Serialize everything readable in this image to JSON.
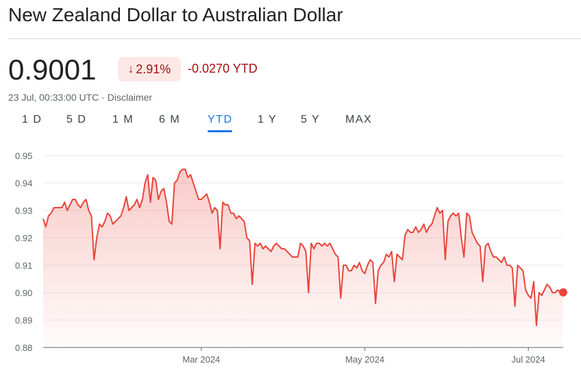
{
  "header": {
    "title": "New Zealand Dollar to Australian Dollar"
  },
  "quote": {
    "price": "0.9001",
    "change_percent": "2.91%",
    "change_direction": "down",
    "change_abs": "-0.0270 YTD",
    "timestamp": "23 Jul, 00:33:00 UTC · Disclaimer"
  },
  "tabs": [
    {
      "label": "1 D"
    },
    {
      "label": "5 D"
    },
    {
      "label": "1 M"
    },
    {
      "label": "6 M"
    },
    {
      "label": "YTD",
      "active": true
    },
    {
      "label": "1 Y"
    },
    {
      "label": "5 Y"
    },
    {
      "label": "MAX"
    }
  ],
  "colors": {
    "line": "#e8453c",
    "negative": "#a50e0e",
    "badge_bg": "#fce8e6",
    "accent": "#1a73e8"
  },
  "chart_data": {
    "type": "area",
    "ylim": [
      0.88,
      0.95
    ],
    "yticks": [
      "0.88",
      "0.89",
      "0.90",
      "0.91",
      "0.92",
      "0.93",
      "0.94",
      "0.95"
    ],
    "xticks": [
      {
        "label": "Mar 2024",
        "day": 59
      },
      {
        "label": "May 2024",
        "day": 120
      },
      {
        "label": "Jul 2024",
        "day": 181
      }
    ],
    "x_start": "2024-01-01",
    "x_end": "2024-07-23",
    "grid": true,
    "points": [
      [
        0,
        0.927
      ],
      [
        1,
        0.924
      ],
      [
        2,
        0.928
      ],
      [
        3,
        0.929
      ],
      [
        4,
        0.931
      ],
      [
        6,
        0.931
      ],
      [
        7,
        0.931
      ],
      [
        8,
        0.933
      ],
      [
        9,
        0.93
      ],
      [
        10,
        0.932
      ],
      [
        11,
        0.934
      ],
      [
        12,
        0.934
      ],
      [
        13,
        0.932
      ],
      [
        14,
        0.931
      ],
      [
        15,
        0.933
      ],
      [
        16,
        0.934
      ],
      [
        17,
        0.93
      ],
      [
        18,
        0.928
      ],
      [
        19,
        0.912
      ],
      [
        20,
        0.92
      ],
      [
        21,
        0.925
      ],
      [
        22,
        0.924
      ],
      [
        23,
        0.926
      ],
      [
        24,
        0.929
      ],
      [
        25,
        0.928
      ],
      [
        26,
        0.925
      ],
      [
        27,
        0.926
      ],
      [
        28,
        0.927
      ],
      [
        29,
        0.928
      ],
      [
        30,
        0.931
      ],
      [
        31,
        0.935
      ],
      [
        32,
        0.93
      ],
      [
        33,
        0.931
      ],
      [
        34,
        0.932
      ],
      [
        35,
        0.934
      ],
      [
        36,
        0.931
      ],
      [
        37,
        0.934
      ],
      [
        38,
        0.94
      ],
      [
        39,
        0.943
      ],
      [
        40,
        0.933
      ],
      [
        41,
        0.942
      ],
      [
        42,
        0.941
      ],
      [
        43,
        0.934
      ],
      [
        44,
        0.937
      ],
      [
        45,
        0.938
      ],
      [
        46,
        0.933
      ],
      [
        47,
        0.926
      ],
      [
        48,
        0.925
      ],
      [
        49,
        0.94
      ],
      [
        50,
        0.941
      ],
      [
        51,
        0.944
      ],
      [
        52,
        0.945
      ],
      [
        53,
        0.945
      ],
      [
        54,
        0.942
      ],
      [
        55,
        0.943
      ],
      [
        56,
        0.94
      ],
      [
        57,
        0.937
      ],
      [
        58,
        0.934
      ],
      [
        59,
        0.934
      ],
      [
        60,
        0.935
      ],
      [
        61,
        0.936
      ],
      [
        62,
        0.933
      ],
      [
        63,
        0.929
      ],
      [
        64,
        0.931
      ],
      [
        65,
        0.93
      ],
      [
        66,
        0.916
      ],
      [
        67,
        0.933
      ],
      [
        68,
        0.932
      ],
      [
        69,
        0.932
      ],
      [
        70,
        0.929
      ],
      [
        71,
        0.929
      ],
      [
        72,
        0.927
      ],
      [
        73,
        0.928
      ],
      [
        74,
        0.927
      ],
      [
        75,
        0.926
      ],
      [
        76,
        0.92
      ],
      [
        77,
        0.919
      ],
      [
        78,
        0.903
      ],
      [
        79,
        0.918
      ],
      [
        80,
        0.917
      ],
      [
        81,
        0.918
      ],
      [
        82,
        0.916
      ],
      [
        83,
        0.917
      ],
      [
        84,
        0.916
      ],
      [
        85,
        0.915
      ],
      [
        86,
        0.917
      ],
      [
        87,
        0.918
      ],
      [
        88,
        0.917
      ],
      [
        89,
        0.916
      ],
      [
        90,
        0.916
      ],
      [
        91,
        0.915
      ],
      [
        92,
        0.914
      ],
      [
        93,
        0.913
      ],
      [
        94,
        0.913
      ],
      [
        95,
        0.913
      ],
      [
        96,
        0.918
      ],
      [
        97,
        0.917
      ],
      [
        98,
        0.915
      ],
      [
        99,
        0.9
      ],
      [
        100,
        0.918
      ],
      [
        101,
        0.916
      ],
      [
        102,
        0.918
      ],
      [
        103,
        0.918
      ],
      [
        104,
        0.917
      ],
      [
        105,
        0.918
      ],
      [
        106,
        0.917
      ],
      [
        107,
        0.918
      ],
      [
        108,
        0.916
      ],
      [
        109,
        0.914
      ],
      [
        110,
        0.913
      ],
      [
        111,
        0.898
      ],
      [
        112,
        0.91
      ],
      [
        113,
        0.91
      ],
      [
        114,
        0.908
      ],
      [
        115,
        0.908
      ],
      [
        116,
        0.91
      ],
      [
        117,
        0.909
      ],
      [
        118,
        0.911
      ],
      [
        119,
        0.908
      ],
      [
        120,
        0.907
      ],
      [
        121,
        0.91
      ],
      [
        122,
        0.912
      ],
      [
        123,
        0.911
      ],
      [
        124,
        0.896
      ],
      [
        125,
        0.908
      ],
      [
        126,
        0.91
      ],
      [
        127,
        0.911
      ],
      [
        128,
        0.914
      ],
      [
        129,
        0.913
      ],
      [
        130,
        0.915
      ],
      [
        131,
        0.904
      ],
      [
        132,
        0.914
      ],
      [
        133,
        0.913
      ],
      [
        134,
        0.912
      ],
      [
        135,
        0.921
      ],
      [
        136,
        0.923
      ],
      [
        137,
        0.922
      ],
      [
        138,
        0.922
      ],
      [
        139,
        0.924
      ],
      [
        140,
        0.922
      ],
      [
        141,
        0.923
      ],
      [
        142,
        0.925
      ],
      [
        143,
        0.922
      ],
      [
        144,
        0.924
      ],
      [
        145,
        0.925
      ],
      [
        146,
        0.928
      ],
      [
        147,
        0.931
      ],
      [
        148,
        0.929
      ],
      [
        149,
        0.93
      ],
      [
        150,
        0.912
      ],
      [
        151,
        0.926
      ],
      [
        152,
        0.928
      ],
      [
        153,
        0.929
      ],
      [
        154,
        0.928
      ],
      [
        155,
        0.929
      ],
      [
        156,
        0.92
      ],
      [
        157,
        0.913
      ],
      [
        158,
        0.929
      ],
      [
        159,
        0.928
      ],
      [
        160,
        0.922
      ],
      [
        161,
        0.92
      ],
      [
        162,
        0.918
      ],
      [
        163,
        0.917
      ],
      [
        164,
        0.904
      ],
      [
        165,
        0.917
      ],
      [
        166,
        0.918
      ],
      [
        167,
        0.915
      ],
      [
        168,
        0.913
      ],
      [
        169,
        0.913
      ],
      [
        170,
        0.912
      ],
      [
        171,
        0.911
      ],
      [
        172,
        0.913
      ],
      [
        173,
        0.91
      ],
      [
        174,
        0.91
      ],
      [
        175,
        0.909
      ],
      [
        176,
        0.895
      ],
      [
        177,
        0.91
      ],
      [
        178,
        0.909
      ],
      [
        179,
        0.908
      ],
      [
        180,
        0.901
      ],
      [
        181,
        0.899
      ],
      [
        182,
        0.898
      ],
      [
        183,
        0.904
      ],
      [
        184,
        0.888
      ],
      [
        185,
        0.9
      ],
      [
        186,
        0.899
      ],
      [
        187,
        0.901
      ],
      [
        188,
        0.903
      ],
      [
        189,
        0.902
      ],
      [
        190,
        0.9
      ],
      [
        191,
        0.9
      ],
      [
        192,
        0.901
      ],
      [
        193,
        0.9
      ],
      [
        194,
        0.9001
      ]
    ]
  }
}
